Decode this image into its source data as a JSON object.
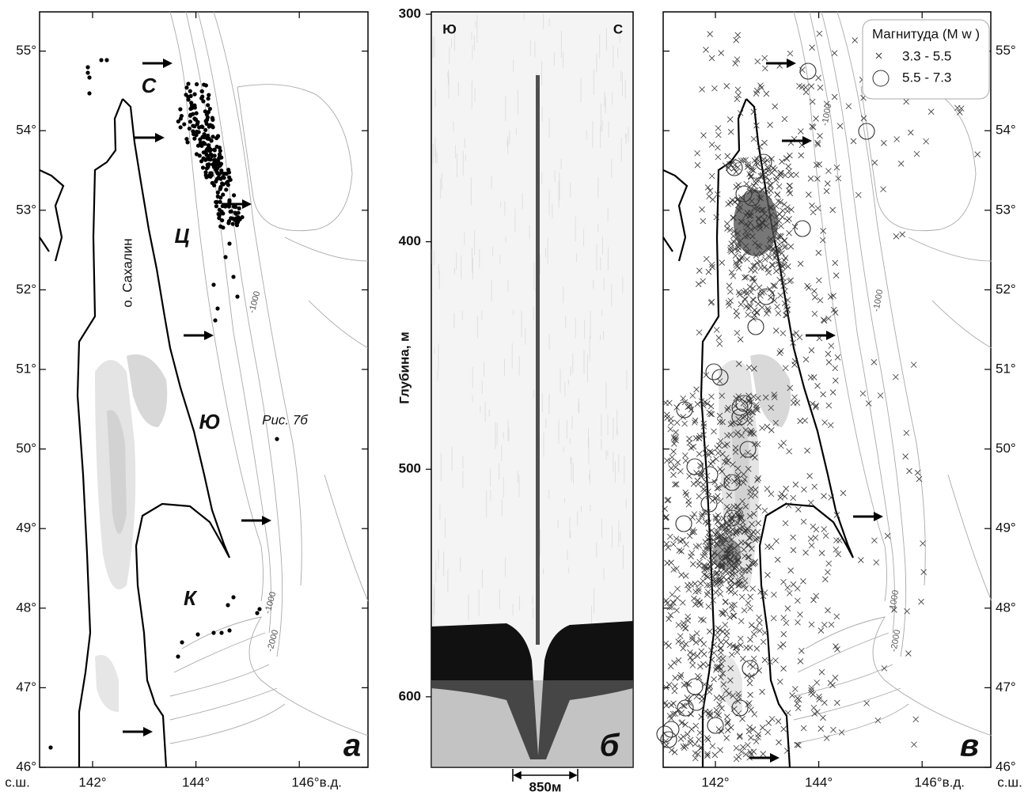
{
  "panel_a": {
    "letter": "а",
    "lat_ticks": [
      {
        "value": 55,
        "label": "55°"
      },
      {
        "value": 54,
        "label": "54°"
      },
      {
        "value": 53,
        "label": "53°"
      },
      {
        "value": 52,
        "label": "52°"
      },
      {
        "value": 51,
        "label": "51°"
      },
      {
        "value": 50,
        "label": "50°"
      },
      {
        "value": 49,
        "label": "49°"
      },
      {
        "value": 48,
        "label": "48°"
      },
      {
        "value": 47,
        "label": "47°"
      },
      {
        "value": 46,
        "label": "46°"
      }
    ],
    "lon_ticks": [
      {
        "value": 142,
        "label": "142°"
      },
      {
        "value": 144,
        "label": "144°"
      },
      {
        "value": 146,
        "label": "146°в.д."
      }
    ],
    "lat_unit": "с.ш.",
    "zones": [
      "С",
      "Ц",
      "Ю",
      "К"
    ],
    "island": "о. Сахалин",
    "figure_ref": "Рис. 7б",
    "contours": [
      "-1000",
      "-1000",
      "-2000"
    ]
  },
  "panel_b": {
    "letter": "б",
    "ylim": [
      300,
      631
    ],
    "yticks": [
      300,
      400,
      500,
      600
    ],
    "ylabel": "Глубина, м",
    "left": "Ю",
    "right": "С",
    "scale": "850м"
  },
  "panel_c": {
    "letter": "в",
    "lat_ticks": [
      {
        "value": 55,
        "label": "55°"
      },
      {
        "value": 54,
        "label": "54°"
      },
      {
        "value": 53,
        "label": "53°"
      },
      {
        "value": 52,
        "label": "52°"
      },
      {
        "value": 51,
        "label": "51°"
      },
      {
        "value": 50,
        "label": "50°"
      },
      {
        "value": 49,
        "label": "49°"
      },
      {
        "value": 48,
        "label": "48°"
      },
      {
        "value": 47,
        "label": "47°"
      },
      {
        "value": 46,
        "label": "46°"
      }
    ],
    "lon_ticks": [
      {
        "value": 142,
        "label": "142°"
      },
      {
        "value": 144,
        "label": "144°"
      },
      {
        "value": 146,
        "label": "146°в.д."
      }
    ],
    "lat_unit": "с.ш.",
    "legend_title": "Магнитуда (M w )",
    "legend": [
      "3.3  -  5.5",
      "5.5  -  7.3"
    ],
    "contours": [
      "-1000",
      "-1000",
      "-1000",
      "-2000"
    ]
  }
}
